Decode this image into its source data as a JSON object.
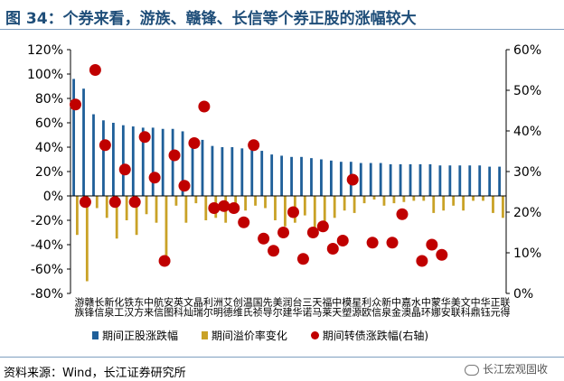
{
  "title": "图 34：个券来看，游族、赣锋、长信等个券正股的涨幅较大",
  "source": "资料来源：Wind，长江证券研究所",
  "watermark": "长江宏观固收",
  "colors": {
    "bar1": "#1f5f99",
    "bar2": "#c9a227",
    "dot": "#c00000",
    "title": "#1f4e79"
  },
  "chart_data": {
    "type": "bar",
    "categories": [
      "游族",
      "赣锋",
      "长信",
      "新泉",
      "化工",
      "铁汉",
      "东方",
      "中来",
      "航信",
      "安图",
      "英科",
      "文灿",
      "晶瑞",
      "利尔",
      "洲明",
      "艾德",
      "创维",
      "温氏",
      "国祯",
      "先导",
      "美尔",
      "润建",
      "台华",
      "三诺",
      "天马",
      "福莱",
      "中天",
      "模塑",
      "星源",
      "利欧",
      "众信",
      "新泉",
      "中金",
      "嘉澳",
      "水晶",
      "中环",
      "蒙娜",
      "华安",
      "美联",
      "文科",
      "中鼎",
      "华钰",
      "正元",
      "联得"
    ],
    "series": [
      {
        "name": "期间正股涨跌幅",
        "axis": "left",
        "values": [
          96,
          88,
          67,
          62,
          60,
          58,
          57,
          56,
          56,
          55,
          55,
          53,
          46,
          46,
          41,
          40,
          40,
          39,
          38,
          37,
          34,
          33,
          32,
          32,
          31,
          30,
          29,
          28,
          28,
          27,
          27,
          27,
          26,
          26,
          26,
          26,
          26,
          25,
          25,
          25,
          25,
          25,
          24,
          24
        ]
      },
      {
        "name": "期间溢价率变化",
        "axis": "left",
        "values": [
          -32,
          -70,
          -10,
          -18,
          -35,
          -20,
          -32,
          -15,
          -22,
          -55,
          -8,
          -22,
          -6,
          -20,
          -18,
          -22,
          -14,
          -12,
          -8,
          -10,
          -20,
          -25,
          -22,
          -16,
          -28,
          -22,
          -18,
          -12,
          -14,
          -6,
          -3,
          -8,
          -6,
          -5,
          -4,
          -4,
          -14,
          -12,
          -8,
          -12,
          -4,
          -4,
          -14,
          -18
        ]
      },
      {
        "name": "期间转债涨跌幅(右轴)",
        "axis": "right",
        "type": "scatter",
        "values": [
          46.5,
          22.5,
          55,
          36.5,
          22.5,
          30.5,
          22.5,
          38.5,
          28.5,
          8,
          34,
          26.5,
          37,
          46,
          21,
          21.5,
          21,
          17.5,
          36.5,
          13.5,
          10.5,
          15,
          20,
          8.5,
          15,
          16.5,
          11,
          13,
          28,
          12.5,
          12.5,
          19.5,
          8,
          12,
          9.5
        ],
        "x_index": [
          0,
          1,
          2,
          3,
          4,
          5,
          6,
          7,
          8,
          9,
          10,
          11,
          12,
          13,
          14,
          15,
          16,
          17,
          18,
          19,
          20,
          21,
          22,
          23,
          24,
          25,
          26,
          27,
          28,
          30,
          32,
          33,
          35,
          36,
          37
        ]
      }
    ],
    "y_left": {
      "min": -80,
      "max": 120,
      "step": 20,
      "unit": "%"
    },
    "y_right": {
      "min": 0,
      "max": 60,
      "step": 10,
      "unit": "%"
    },
    "grid": false,
    "legend_position": "bottom"
  }
}
